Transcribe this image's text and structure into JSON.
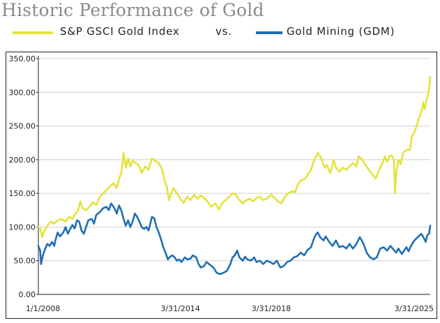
{
  "chart_data": {
    "type": "line",
    "title": "Historic Performance of Gold",
    "legend_separator": "vs.",
    "ylim": [
      0,
      350
    ],
    "yticks": [
      "0.00",
      "50.00",
      "100.00",
      "150.00",
      "200.00",
      "250.00",
      "300.00",
      "350.00"
    ],
    "xlim": [
      2008.0,
      2025.25
    ],
    "xticks": [
      {
        "label": "1/1/2008",
        "x": 2008.0
      },
      {
        "label": "3/31/2014",
        "x": 2014.25
      },
      {
        "label": "3/31/2018",
        "x": 2018.25
      },
      {
        "label": "3/31/2025",
        "x": 2025.25
      }
    ],
    "grid": true,
    "legend_position": "top",
    "series": [
      {
        "name": "S&P GSCI Gold Index",
        "color": "#e3e33a",
        "points": [
          [
            2008.0,
            100
          ],
          [
            2008.08,
            98
          ],
          [
            2008.17,
            85
          ],
          [
            2008.25,
            93
          ],
          [
            2008.4,
            102
          ],
          [
            2008.55,
            108
          ],
          [
            2008.7,
            105
          ],
          [
            2008.85,
            110
          ],
          [
            2009.0,
            112
          ],
          [
            2009.2,
            108
          ],
          [
            2009.35,
            115
          ],
          [
            2009.5,
            112
          ],
          [
            2009.6,
            118
          ],
          [
            2009.75,
            125
          ],
          [
            2009.85,
            138
          ],
          [
            2009.95,
            128
          ],
          [
            2010.1,
            125
          ],
          [
            2010.25,
            130
          ],
          [
            2010.4,
            137
          ],
          [
            2010.55,
            133
          ],
          [
            2010.7,
            145
          ],
          [
            2010.85,
            150
          ],
          [
            2011.0,
            155
          ],
          [
            2011.15,
            160
          ],
          [
            2011.3,
            165
          ],
          [
            2011.45,
            158
          ],
          [
            2011.55,
            172
          ],
          [
            2011.65,
            180
          ],
          [
            2011.7,
            195
          ],
          [
            2011.75,
            210
          ],
          [
            2011.8,
            200
          ],
          [
            2011.85,
            188
          ],
          [
            2011.95,
            202
          ],
          [
            2012.05,
            190
          ],
          [
            2012.15,
            198
          ],
          [
            2012.3,
            195
          ],
          [
            2012.45,
            190
          ],
          [
            2012.55,
            180
          ],
          [
            2012.7,
            190
          ],
          [
            2012.85,
            185
          ],
          [
            2013.0,
            202
          ],
          [
            2013.15,
            198
          ],
          [
            2013.3,
            195
          ],
          [
            2013.45,
            185
          ],
          [
            2013.55,
            170
          ],
          [
            2013.65,
            160
          ],
          [
            2013.75,
            140
          ],
          [
            2013.85,
            150
          ],
          [
            2013.95,
            158
          ],
          [
            2014.1,
            150
          ],
          [
            2014.25,
            142
          ],
          [
            2014.4,
            136
          ],
          [
            2014.55,
            145
          ],
          [
            2014.7,
            140
          ],
          [
            2014.85,
            148
          ],
          [
            2015.0,
            142
          ],
          [
            2015.15,
            147
          ],
          [
            2015.3,
            143
          ],
          [
            2015.45,
            138
          ],
          [
            2015.6,
            130
          ],
          [
            2015.8,
            135
          ],
          [
            2015.95,
            126
          ],
          [
            2016.1,
            136
          ],
          [
            2016.25,
            140
          ],
          [
            2016.4,
            145
          ],
          [
            2016.55,
            150
          ],
          [
            2016.7,
            148
          ],
          [
            2016.85,
            140
          ],
          [
            2017.0,
            135
          ],
          [
            2017.15,
            140
          ],
          [
            2017.3,
            142
          ],
          [
            2017.45,
            138
          ],
          [
            2017.6,
            143
          ],
          [
            2017.75,
            145
          ],
          [
            2017.9,
            140
          ],
          [
            2018.05,
            142
          ],
          [
            2018.25,
            148
          ],
          [
            2018.4,
            143
          ],
          [
            2018.55,
            138
          ],
          [
            2018.7,
            135
          ],
          [
            2018.85,
            145
          ],
          [
            2019.0,
            150
          ],
          [
            2019.15,
            153
          ],
          [
            2019.3,
            152
          ],
          [
            2019.45,
            165
          ],
          [
            2019.6,
            170
          ],
          [
            2019.75,
            172
          ],
          [
            2019.9,
            180
          ],
          [
            2020.0,
            185
          ],
          [
            2020.15,
            200
          ],
          [
            2020.3,
            210
          ],
          [
            2020.4,
            205
          ],
          [
            2020.5,
            198
          ],
          [
            2020.6,
            188
          ],
          [
            2020.7,
            192
          ],
          [
            2020.85,
            180
          ],
          [
            2021.0,
            200
          ],
          [
            2021.1,
            188
          ],
          [
            2021.25,
            182
          ],
          [
            2021.4,
            188
          ],
          [
            2021.55,
            185
          ],
          [
            2021.7,
            190
          ],
          [
            2021.85,
            195
          ],
          [
            2022.0,
            190
          ],
          [
            2022.1,
            205
          ],
          [
            2022.25,
            200
          ],
          [
            2022.4,
            192
          ],
          [
            2022.55,
            185
          ],
          [
            2022.7,
            178
          ],
          [
            2022.85,
            172
          ],
          [
            2023.0,
            185
          ],
          [
            2023.15,
            195
          ],
          [
            2023.25,
            205
          ],
          [
            2023.35,
            197
          ],
          [
            2023.45,
            205
          ],
          [
            2023.55,
            206
          ],
          [
            2023.65,
            200
          ],
          [
            2023.7,
            150
          ],
          [
            2023.75,
            180
          ],
          [
            2023.85,
            200
          ],
          [
            2023.95,
            193
          ],
          [
            2024.05,
            210
          ],
          [
            2024.15,
            213
          ],
          [
            2024.25,
            215
          ],
          [
            2024.35,
            214
          ],
          [
            2024.45,
            235
          ],
          [
            2024.55,
            240
          ],
          [
            2024.65,
            250
          ],
          [
            2024.75,
            262
          ],
          [
            2024.85,
            270
          ],
          [
            2024.95,
            285
          ],
          [
            2025.0,
            275
          ],
          [
            2025.1,
            290
          ],
          [
            2025.18,
            300
          ],
          [
            2025.25,
            323
          ]
        ]
      },
      {
        "name": "Gold Mining (GDM)",
        "color": "#1f6fb4",
        "points": [
          [
            2008.0,
            72
          ],
          [
            2008.08,
            65
          ],
          [
            2008.12,
            45
          ],
          [
            2008.2,
            58
          ],
          [
            2008.3,
            68
          ],
          [
            2008.4,
            75
          ],
          [
            2008.5,
            72
          ],
          [
            2008.6,
            78
          ],
          [
            2008.7,
            72
          ],
          [
            2008.75,
            80
          ],
          [
            2008.85,
            92
          ],
          [
            2008.95,
            86
          ],
          [
            2009.1,
            92
          ],
          [
            2009.2,
            100
          ],
          [
            2009.3,
            90
          ],
          [
            2009.4,
            97
          ],
          [
            2009.5,
            103
          ],
          [
            2009.6,
            98
          ],
          [
            2009.7,
            110
          ],
          [
            2009.8,
            108
          ],
          [
            2009.9,
            95
          ],
          [
            2010.0,
            90
          ],
          [
            2010.1,
            100
          ],
          [
            2010.2,
            110
          ],
          [
            2010.35,
            112
          ],
          [
            2010.45,
            105
          ],
          [
            2010.55,
            118
          ],
          [
            2010.7,
            122
          ],
          [
            2010.85,
            128
          ],
          [
            2011.0,
            130
          ],
          [
            2011.1,
            125
          ],
          [
            2011.2,
            135
          ],
          [
            2011.35,
            128
          ],
          [
            2011.45,
            120
          ],
          [
            2011.55,
            132
          ],
          [
            2011.65,
            125
          ],
          [
            2011.75,
            112
          ],
          [
            2011.85,
            102
          ],
          [
            2011.95,
            110
          ],
          [
            2012.05,
            100
          ],
          [
            2012.15,
            108
          ],
          [
            2012.25,
            120
          ],
          [
            2012.35,
            115
          ],
          [
            2012.45,
            108
          ],
          [
            2012.55,
            100
          ],
          [
            2012.65,
            97
          ],
          [
            2012.75,
            100
          ],
          [
            2012.85,
            95
          ],
          [
            2013.0,
            115
          ],
          [
            2013.1,
            113
          ],
          [
            2013.2,
            100
          ],
          [
            2013.3,
            92
          ],
          [
            2013.4,
            82
          ],
          [
            2013.5,
            70
          ],
          [
            2013.6,
            62
          ],
          [
            2013.7,
            52
          ],
          [
            2013.8,
            56
          ],
          [
            2013.9,
            58
          ],
          [
            2014.0,
            55
          ],
          [
            2014.1,
            50
          ],
          [
            2014.2,
            52
          ],
          [
            2014.3,
            48
          ],
          [
            2014.45,
            55
          ],
          [
            2014.55,
            52
          ],
          [
            2014.7,
            53
          ],
          [
            2014.8,
            58
          ],
          [
            2014.95,
            55
          ],
          [
            2015.05,
            45
          ],
          [
            2015.15,
            40
          ],
          [
            2015.3,
            42
          ],
          [
            2015.4,
            48
          ],
          [
            2015.55,
            44
          ],
          [
            2015.7,
            40
          ],
          [
            2015.85,
            32
          ],
          [
            2016.0,
            30
          ],
          [
            2016.15,
            32
          ],
          [
            2016.3,
            35
          ],
          [
            2016.45,
            45
          ],
          [
            2016.55,
            55
          ],
          [
            2016.65,
            58
          ],
          [
            2016.75,
            65
          ],
          [
            2016.85,
            55
          ],
          [
            2017.0,
            50
          ],
          [
            2017.1,
            56
          ],
          [
            2017.2,
            52
          ],
          [
            2017.35,
            50
          ],
          [
            2017.5,
            55
          ],
          [
            2017.6,
            48
          ],
          [
            2017.75,
            50
          ],
          [
            2017.9,
            45
          ],
          [
            2018.05,
            50
          ],
          [
            2018.2,
            48
          ],
          [
            2018.35,
            45
          ],
          [
            2018.5,
            50
          ],
          [
            2018.65,
            40
          ],
          [
            2018.8,
            42
          ],
          [
            2018.95,
            48
          ],
          [
            2019.1,
            50
          ],
          [
            2019.25,
            55
          ],
          [
            2019.4,
            57
          ],
          [
            2019.55,
            62
          ],
          [
            2019.7,
            58
          ],
          [
            2019.85,
            66
          ],
          [
            2020.0,
            70
          ],
          [
            2020.1,
            80
          ],
          [
            2020.2,
            88
          ],
          [
            2020.3,
            92
          ],
          [
            2020.4,
            85
          ],
          [
            2020.55,
            80
          ],
          [
            2020.65,
            86
          ],
          [
            2020.8,
            78
          ],
          [
            2020.95,
            72
          ],
          [
            2021.1,
            80
          ],
          [
            2021.25,
            70
          ],
          [
            2021.4,
            72
          ],
          [
            2021.55,
            68
          ],
          [
            2021.7,
            75
          ],
          [
            2021.85,
            68
          ],
          [
            2022.0,
            75
          ],
          [
            2022.15,
            85
          ],
          [
            2022.3,
            76
          ],
          [
            2022.45,
            62
          ],
          [
            2022.6,
            55
          ],
          [
            2022.75,
            52
          ],
          [
            2022.9,
            55
          ],
          [
            2023.05,
            68
          ],
          [
            2023.2,
            70
          ],
          [
            2023.35,
            65
          ],
          [
            2023.5,
            72
          ],
          [
            2023.6,
            68
          ],
          [
            2023.75,
            62
          ],
          [
            2023.85,
            68
          ],
          [
            2024.0,
            60
          ],
          [
            2024.1,
            65
          ],
          [
            2024.2,
            70
          ],
          [
            2024.3,
            64
          ],
          [
            2024.4,
            72
          ],
          [
            2024.55,
            80
          ],
          [
            2024.7,
            85
          ],
          [
            2024.85,
            90
          ],
          [
            2024.95,
            85
          ],
          [
            2025.05,
            78
          ],
          [
            2025.12,
            88
          ],
          [
            2025.2,
            90
          ],
          [
            2025.25,
            102
          ]
        ]
      }
    ]
  }
}
